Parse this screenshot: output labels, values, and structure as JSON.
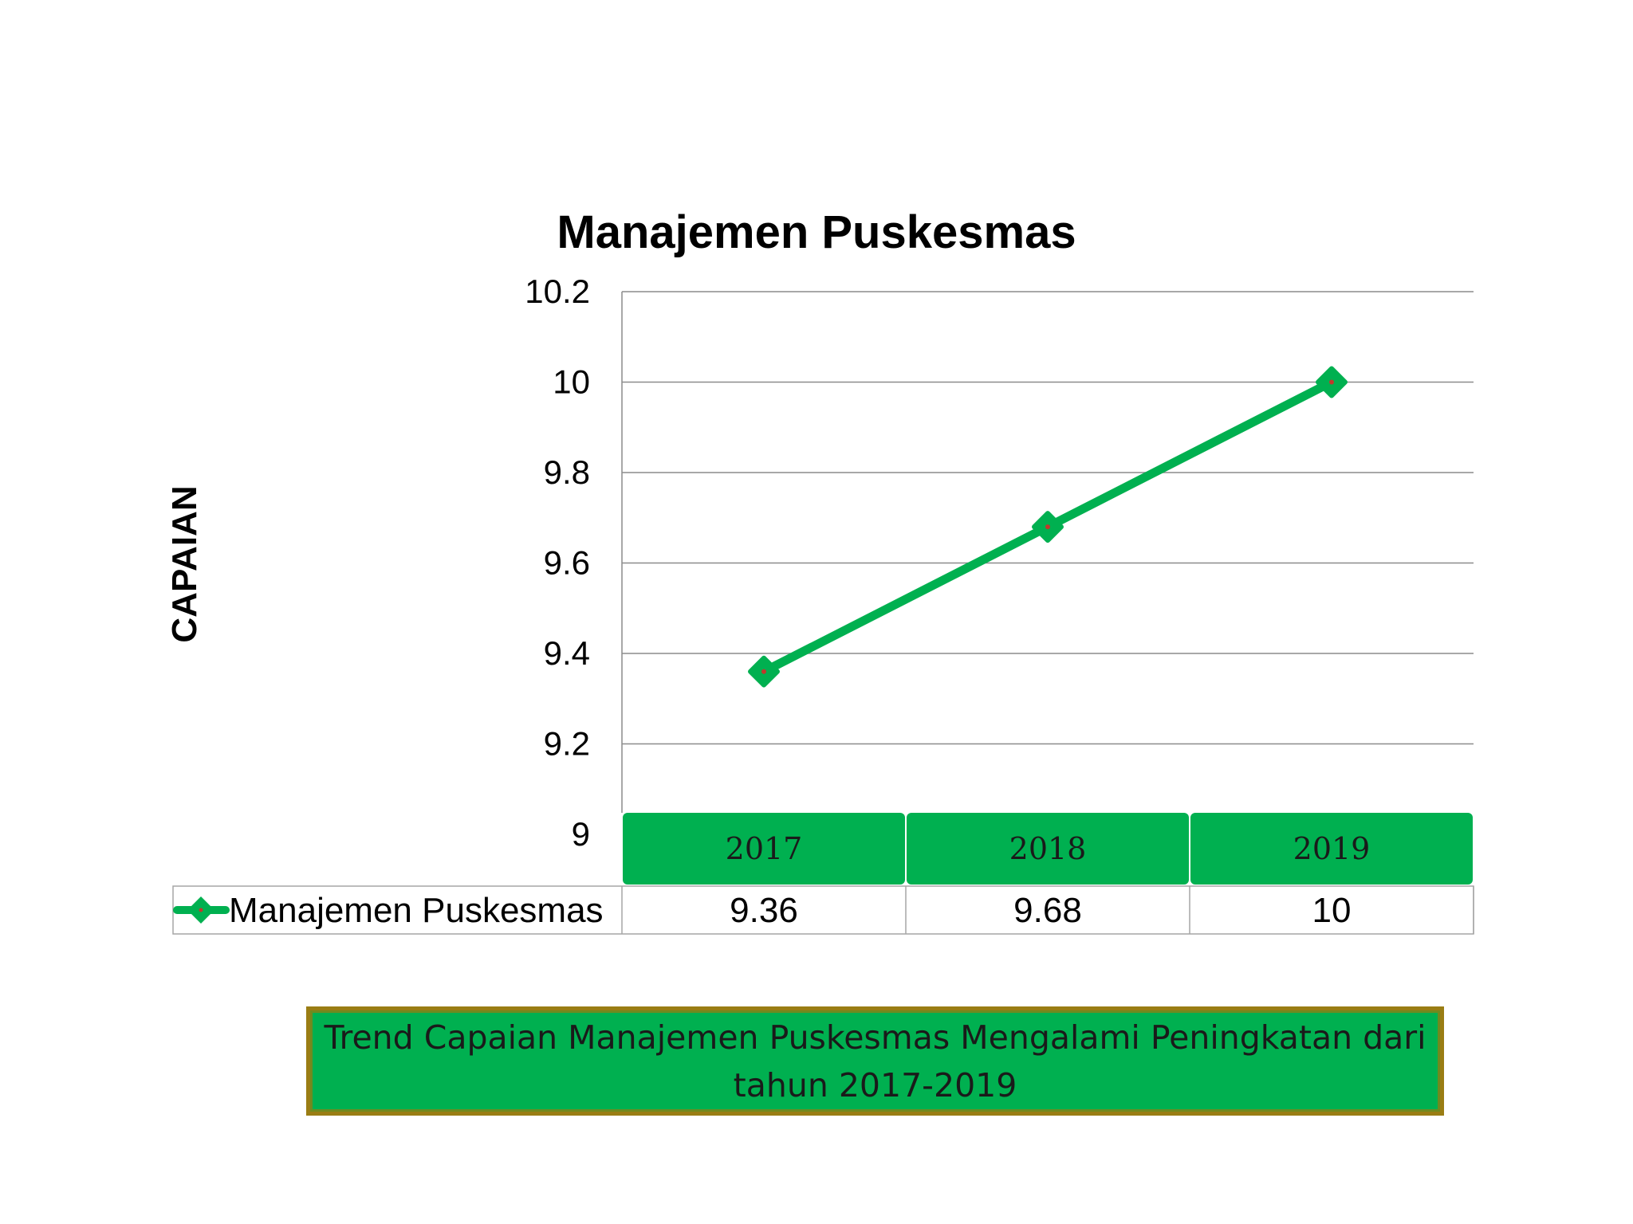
{
  "chart_data": {
    "type": "line",
    "title": "Manajemen Puskesmas",
    "ylabel": "CAPAIAN",
    "xlabel": "",
    "categories": [
      "2017",
      "2018",
      "2019"
    ],
    "series": [
      {
        "name": "Manajemen Puskesmas",
        "values": [
          9.36,
          9.68,
          10
        ]
      }
    ],
    "ylim": [
      9,
      10.2
    ],
    "yticks": [
      9,
      9.2,
      9.4,
      9.6,
      9.8,
      10,
      10.2
    ],
    "ytick_labels": [
      "9",
      "9.2",
      "9.4",
      "9.6",
      "9.8",
      "10",
      "10.2"
    ],
    "value_labels": [
      "9.36",
      "9.68",
      "10"
    ],
    "grid": true,
    "data_table": true,
    "colors": {
      "series": "#00b050",
      "marker_center": "#c0392b",
      "category_band": "#00b050",
      "grid": "#8c8c8c"
    }
  },
  "summary": {
    "text": "Trend Capaian Manajemen Puskesmas Mengalami Peningkatan dari tahun 2017-2019",
    "background": "#00b050",
    "border": "#9a7d14"
  }
}
